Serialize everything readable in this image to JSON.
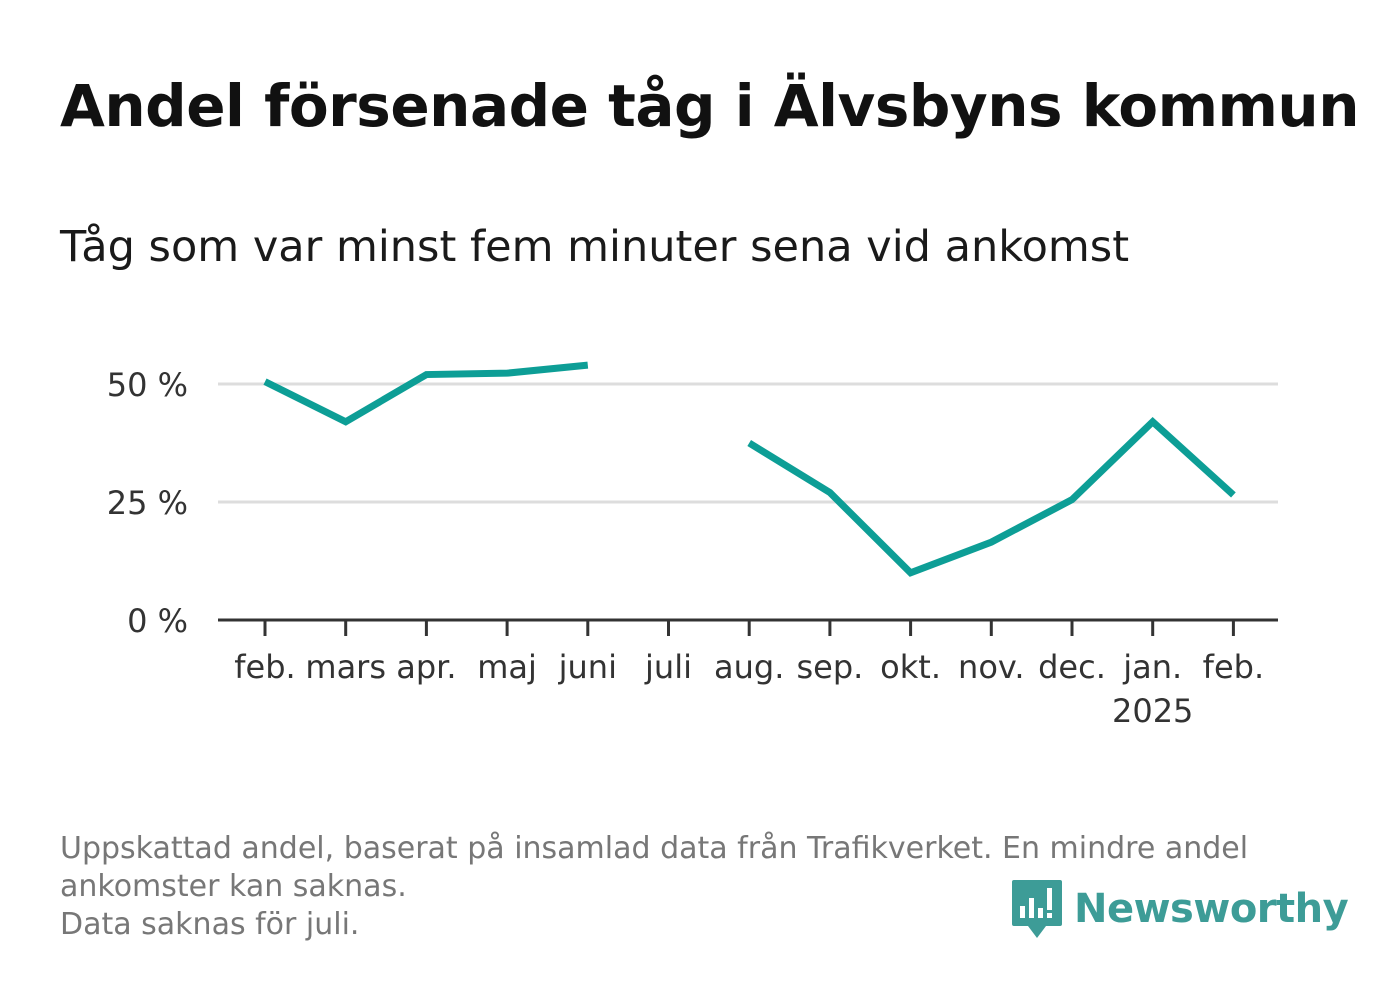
{
  "title": "Andel försenade tåg i Älvsbyns kommun",
  "subtitle": "Tåg som var minst fem minuter sena vid ankomst",
  "chart_data": {
    "type": "line",
    "categories": [
      "feb.",
      "mars",
      "apr.",
      "maj",
      "juni",
      "juli",
      "aug.",
      "sep.",
      "okt.",
      "nov.",
      "dec.",
      "jan.",
      "feb."
    ],
    "category_sublabels": [
      "",
      "",
      "",
      "",
      "",
      "",
      "",
      "",
      "",
      "",
      "",
      "2025",
      ""
    ],
    "series": [
      {
        "values": [
          50.5,
          42,
          52,
          52.3,
          54,
          null,
          37.5,
          27,
          10,
          16.5,
          25.5,
          42,
          26.5
        ]
      }
    ],
    "y_ticks": [
      0,
      25,
      50
    ],
    "y_tick_labels": [
      "0 %",
      "25 %",
      "50 %"
    ],
    "ylim": [
      0,
      50
    ],
    "grid": true,
    "line_color": "#0d9e96"
  },
  "footnote": {
    "line1": "Uppskattad andel, baserat på insamlad data från Trafikverket. En mindre andel",
    "line2": "ankomster kan saknas.",
    "line3": "Data saknas för juli."
  },
  "brand": {
    "name": "Newsworthy",
    "icon": "bar-chart-speech-bubble-icon",
    "color": "#3d9c97"
  }
}
